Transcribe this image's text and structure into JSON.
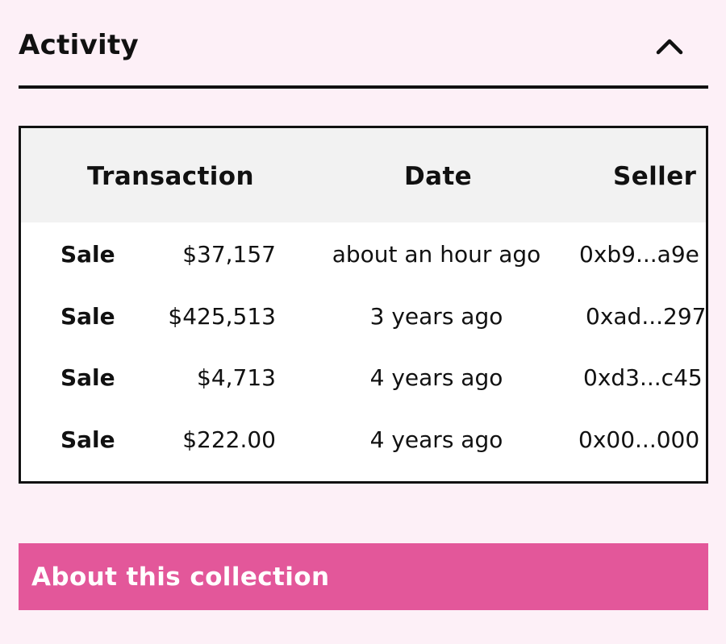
{
  "activity": {
    "title": "Activity",
    "toggle_icon": "chevron-up-icon"
  },
  "table": {
    "headers": {
      "transaction": "Transaction",
      "date": "Date",
      "seller": "Seller"
    },
    "rows": [
      {
        "type": "Sale",
        "price": "$37,157",
        "date": "about an hour ago",
        "seller": "0xb9...a9e"
      },
      {
        "type": "Sale",
        "price": "$425,513",
        "date": "3 years ago",
        "seller": "0xad...297"
      },
      {
        "type": "Sale",
        "price": "$4,713",
        "date": "4 years ago",
        "seller": "0xd3...c45"
      },
      {
        "type": "Sale",
        "price": "$222.00",
        "date": "4 years ago",
        "seller": "0x00...000"
      }
    ]
  },
  "about": {
    "label": "About this collection"
  },
  "colors": {
    "background": "#fdf0f7",
    "accent": "#e3579a",
    "header_bg": "#f2f2f2",
    "text": "#111111"
  }
}
